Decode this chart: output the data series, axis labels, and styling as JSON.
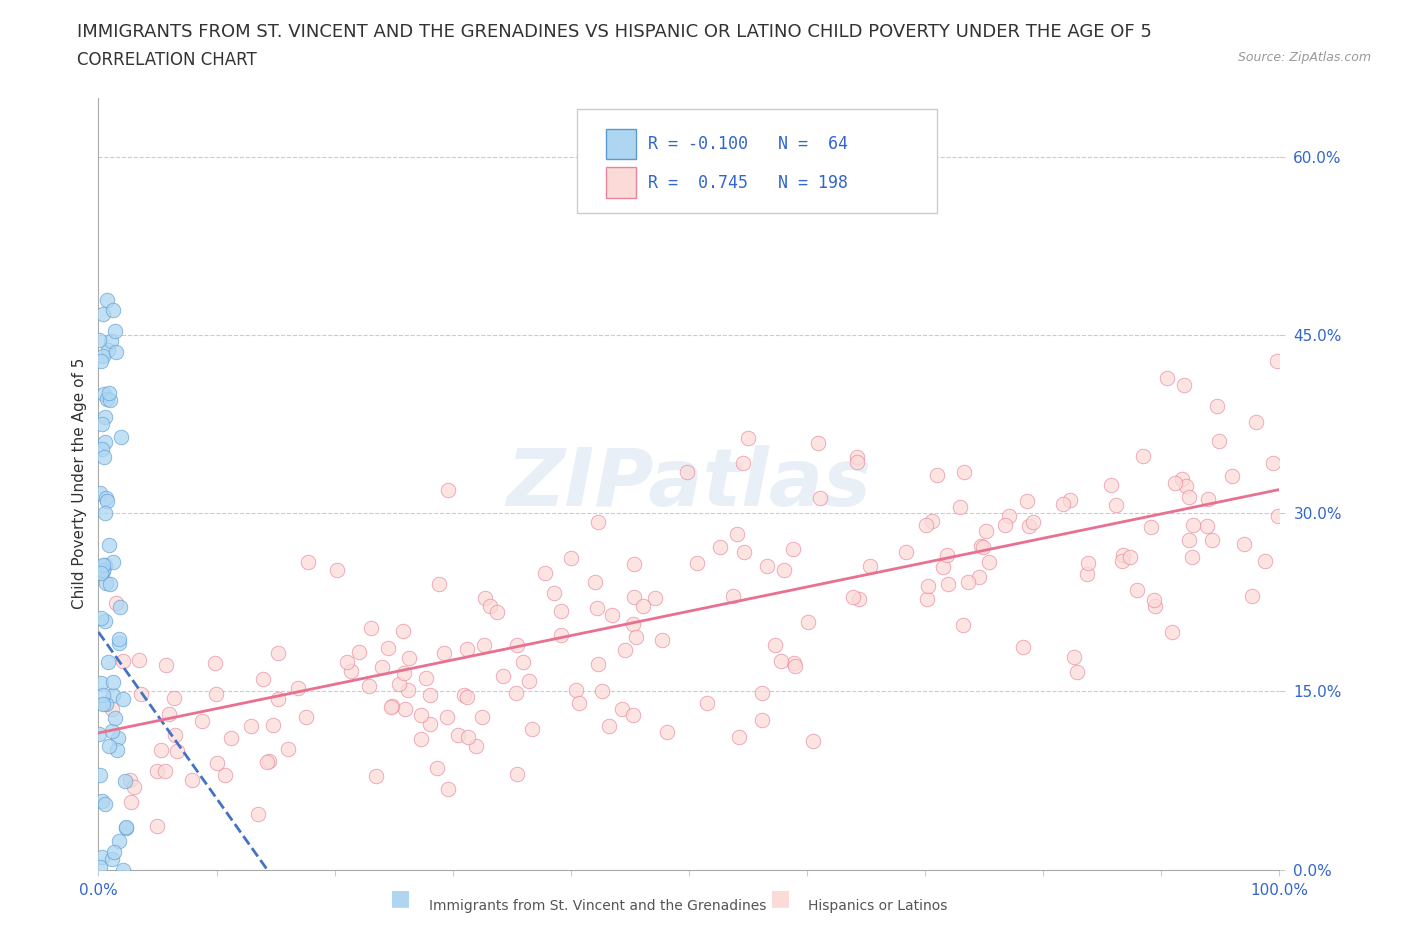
{
  "title": "IMMIGRANTS FROM ST. VINCENT AND THE GRENADINES VS HISPANIC OR LATINO CHILD POVERTY UNDER THE AGE OF 5",
  "subtitle": "CORRELATION CHART",
  "source": "Source: ZipAtlas.com",
  "ylabel": "Child Poverty Under the Age of 5",
  "xlim": [
    0.0,
    1.0
  ],
  "ylim": [
    0.0,
    0.65
  ],
  "x_ticks": [
    0.0,
    0.1,
    0.2,
    0.3,
    0.4,
    0.5,
    0.6,
    0.7,
    0.8,
    0.9,
    1.0
  ],
  "y_ticks": [
    0.0,
    0.15,
    0.3,
    0.45,
    0.6
  ],
  "y_tick_labels": [
    "0.0%",
    "15.0%",
    "30.0%",
    "45.0%",
    "60.0%"
  ],
  "blue_color": "#7BAFD4",
  "blue_fill": "#AED6F1",
  "blue_edge": "#5B9BD5",
  "pink_color": "#F1948A",
  "pink_fill": "#FADBD8",
  "pink_edge": "#E8849A",
  "legend_R1": "-0.100",
  "legend_N1": "64",
  "legend_R2": "0.745",
  "legend_N2": "198",
  "grid_color": "#CCCCCC",
  "watermark": "ZIPatlas",
  "background_color": "#FFFFFF",
  "title_fontsize": 13,
  "subtitle_fontsize": 12,
  "axis_label_fontsize": 11,
  "tick_fontsize": 11,
  "blue_R": -0.1,
  "blue_N": 64,
  "pink_R": 0.745,
  "pink_N": 198,
  "blue_scatter_seed": 42,
  "pink_scatter_seed": 77,
  "blue_line_color": "#4472C4",
  "pink_line_color": "#E87090",
  "blue_intercept": 0.2,
  "blue_slope": -1.4,
  "pink_intercept": 0.115,
  "pink_slope": 0.205
}
